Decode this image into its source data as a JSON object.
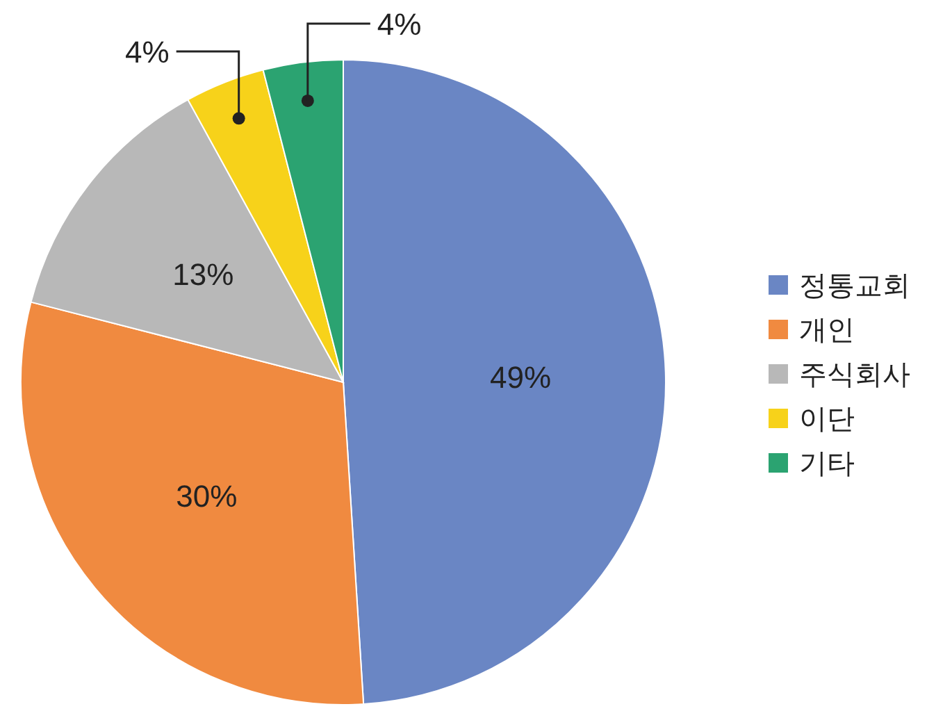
{
  "chart_data": {
    "type": "pie",
    "categories": [
      "정통교회",
      "개인",
      "주식회사",
      "이단",
      "기타"
    ],
    "values": [
      49,
      30,
      13,
      4,
      4
    ],
    "colors": [
      "#6a86c4",
      "#f08a40",
      "#b8b8b8",
      "#f7d21a",
      "#2ba371"
    ],
    "value_labels": [
      "49%",
      "30%",
      "13%",
      "4%",
      "4%"
    ],
    "legend": "right"
  }
}
